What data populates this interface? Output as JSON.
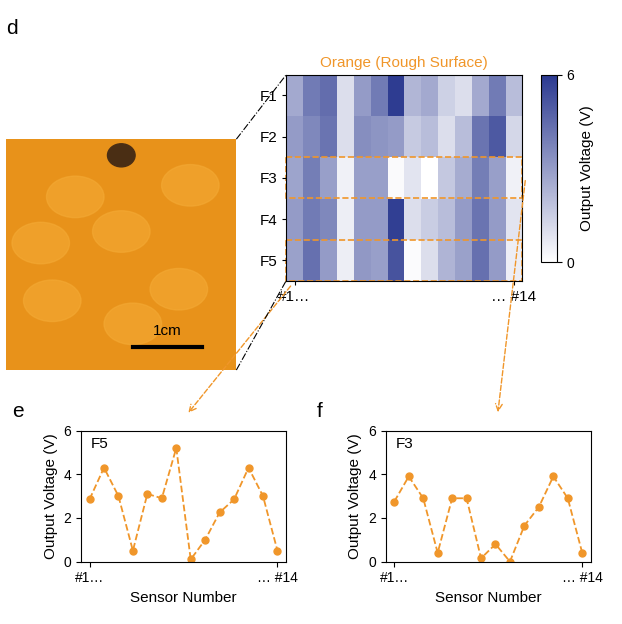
{
  "photo": {
    "panel": "d",
    "scale_label": "1cm"
  },
  "chart_data": [
    {
      "type": "heatmap",
      "title": "Orange (Rough Surface)",
      "rows": [
        "F1",
        "F2",
        "F3",
        "F4",
        "F5"
      ],
      "categories": [
        "#1…",
        null,
        null,
        null,
        null,
        null,
        null,
        null,
        null,
        null,
        null,
        null,
        null,
        "… #14"
      ],
      "cells": [
        [
          2.6,
          4.0,
          4.4,
          1.0,
          3.0,
          4.0,
          5.9,
          2.2,
          2.6,
          1.4,
          1.0,
          2.6,
          4.0,
          2.0
        ],
        [
          3.0,
          3.6,
          4.2,
          1.0,
          3.4,
          3.2,
          3.0,
          1.6,
          2.0,
          1.0,
          2.0,
          4.2,
          5.0,
          1.2
        ],
        [
          2.75,
          3.9,
          2.9,
          0.4,
          2.9,
          2.9,
          0.15,
          0.8,
          0.0,
          1.65,
          2.5,
          3.9,
          2.9,
          0.4
        ],
        [
          3.0,
          4.0,
          3.6,
          0.5,
          3.0,
          3.0,
          5.8,
          1.0,
          1.5,
          2.0,
          3.0,
          4.2,
          3.0,
          0.8
        ],
        [
          2.85,
          4.3,
          3.0,
          0.5,
          3.1,
          2.9,
          5.2,
          0.1,
          1.0,
          2.25,
          2.85,
          4.3,
          3.0,
          0.5
        ]
      ],
      "color": "#2b3990",
      "colorbar": {
        "label": "Output Voltage (V)",
        "range": [
          0,
          6
        ],
        "ticks": [
          0,
          6
        ]
      }
    },
    {
      "type": "line",
      "panel": "e",
      "title": "F5",
      "categories": [
        "#1…",
        null,
        null,
        null,
        null,
        null,
        null,
        null,
        null,
        null,
        null,
        null,
        null,
        "… #14"
      ],
      "values": [
        2.85,
        4.3,
        3.0,
        0.5,
        3.1,
        2.9,
        5.2,
        0.1,
        1.0,
        2.25,
        2.85,
        4.3,
        3.0,
        0.5
      ],
      "x_label": "Sensor Number",
      "y_label": "Output Voltage (V)",
      "ylim": [
        0,
        6
      ],
      "yticks": [
        0,
        2,
        4,
        6
      ],
      "color": "#f0962a",
      "marker": "o",
      "line_style": "dashed"
    },
    {
      "type": "line",
      "panel": "f",
      "title": "F3",
      "categories": [
        "#1…",
        null,
        null,
        null,
        null,
        null,
        null,
        null,
        null,
        null,
        null,
        null,
        null,
        "… #14"
      ],
      "values": [
        2.75,
        3.9,
        2.9,
        0.4,
        2.9,
        2.9,
        0.15,
        0.8,
        0.0,
        1.65,
        2.5,
        3.9,
        2.9,
        0.4
      ],
      "x_label": "Sensor Number",
      "y_label": "Output Voltage (V)",
      "ylim": [
        0,
        6
      ],
      "yticks": [
        0,
        2,
        4,
        6
      ],
      "color": "#f0962a",
      "marker": "o",
      "line_style": "dashed"
    }
  ]
}
